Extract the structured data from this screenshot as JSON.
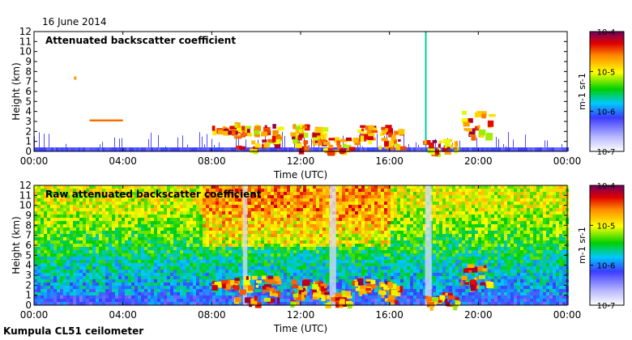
{
  "date_label": "16 June 2014",
  "footer_label": "Kumpula CL51 ceilometer",
  "chart_data": [
    {
      "type": "heatmap",
      "title": "Attenuated backscatter coefficient",
      "xlabel": "Time (UTC)",
      "ylabel": "Height (km)",
      "xticks": [
        "00:00",
        "04:00",
        "08:00",
        "12:00",
        "16:00",
        "20:00",
        "00:00"
      ],
      "xlim_hours": [
        0,
        24
      ],
      "ylim_km": [
        0,
        12
      ],
      "yticks": [
        0,
        1,
        2,
        3,
        4,
        5,
        6,
        7,
        8,
        9,
        10,
        11,
        12
      ],
      "colorbar": {
        "label": "m-1 sr-1",
        "range": [
          1e-07,
          0.0001
        ],
        "ticks": [
          "10-7",
          "10-6",
          "10-5",
          "10-4"
        ]
      },
      "features": [
        {
          "description": "scattered low noise near surface",
          "hours": [
            0,
            24
          ],
          "height_km": [
            0,
            0.4
          ],
          "intensity": "low"
        },
        {
          "description": "residual layer cloud",
          "hours": [
            2.5,
            4.0
          ],
          "height_km": [
            3.0,
            3.2
          ],
          "intensity": "medium"
        },
        {
          "description": "convective clouds",
          "hours": [
            7.5,
            20.5
          ],
          "height_km": [
            0.5,
            3.2
          ],
          "intensity": "high"
        },
        {
          "description": "precipitation event",
          "hours": [
            17.5,
            19.0
          ],
          "height_km": [
            0,
            1.3
          ],
          "intensity": "high"
        }
      ]
    },
    {
      "type": "heatmap",
      "title": "Raw attenuated backscatter coefficient",
      "xlabel": "Time (UTC)",
      "ylabel": "Height (km)",
      "xticks": [
        "00:00",
        "04:00",
        "08:00",
        "12:00",
        "16:00",
        "20:00",
        "00:00"
      ],
      "xlim_hours": [
        0,
        24
      ],
      "ylim_km": [
        0,
        12
      ],
      "yticks": [
        0,
        1,
        2,
        3,
        4,
        5,
        6,
        7,
        8,
        9,
        10,
        11,
        12
      ],
      "colorbar": {
        "label": "m-1 sr-1",
        "range": [
          1e-07,
          0.0001
        ],
        "ticks": [
          "10-7",
          "10-6",
          "10-5",
          "10-4"
        ]
      },
      "features": [
        {
          "description": "noise-dominated background increasing with height",
          "hours": [
            0,
            24
          ],
          "height_km": [
            0,
            12
          ],
          "intensity": "noise"
        },
        {
          "description": "convective clouds",
          "hours": [
            8.5,
            20.5
          ],
          "height_km": [
            0.3,
            3.0
          ],
          "intensity": "high"
        },
        {
          "description": "precipitation event",
          "hours": [
            17.5,
            19.0
          ],
          "height_km": [
            0,
            1.3
          ],
          "intensity": "high"
        }
      ]
    }
  ]
}
